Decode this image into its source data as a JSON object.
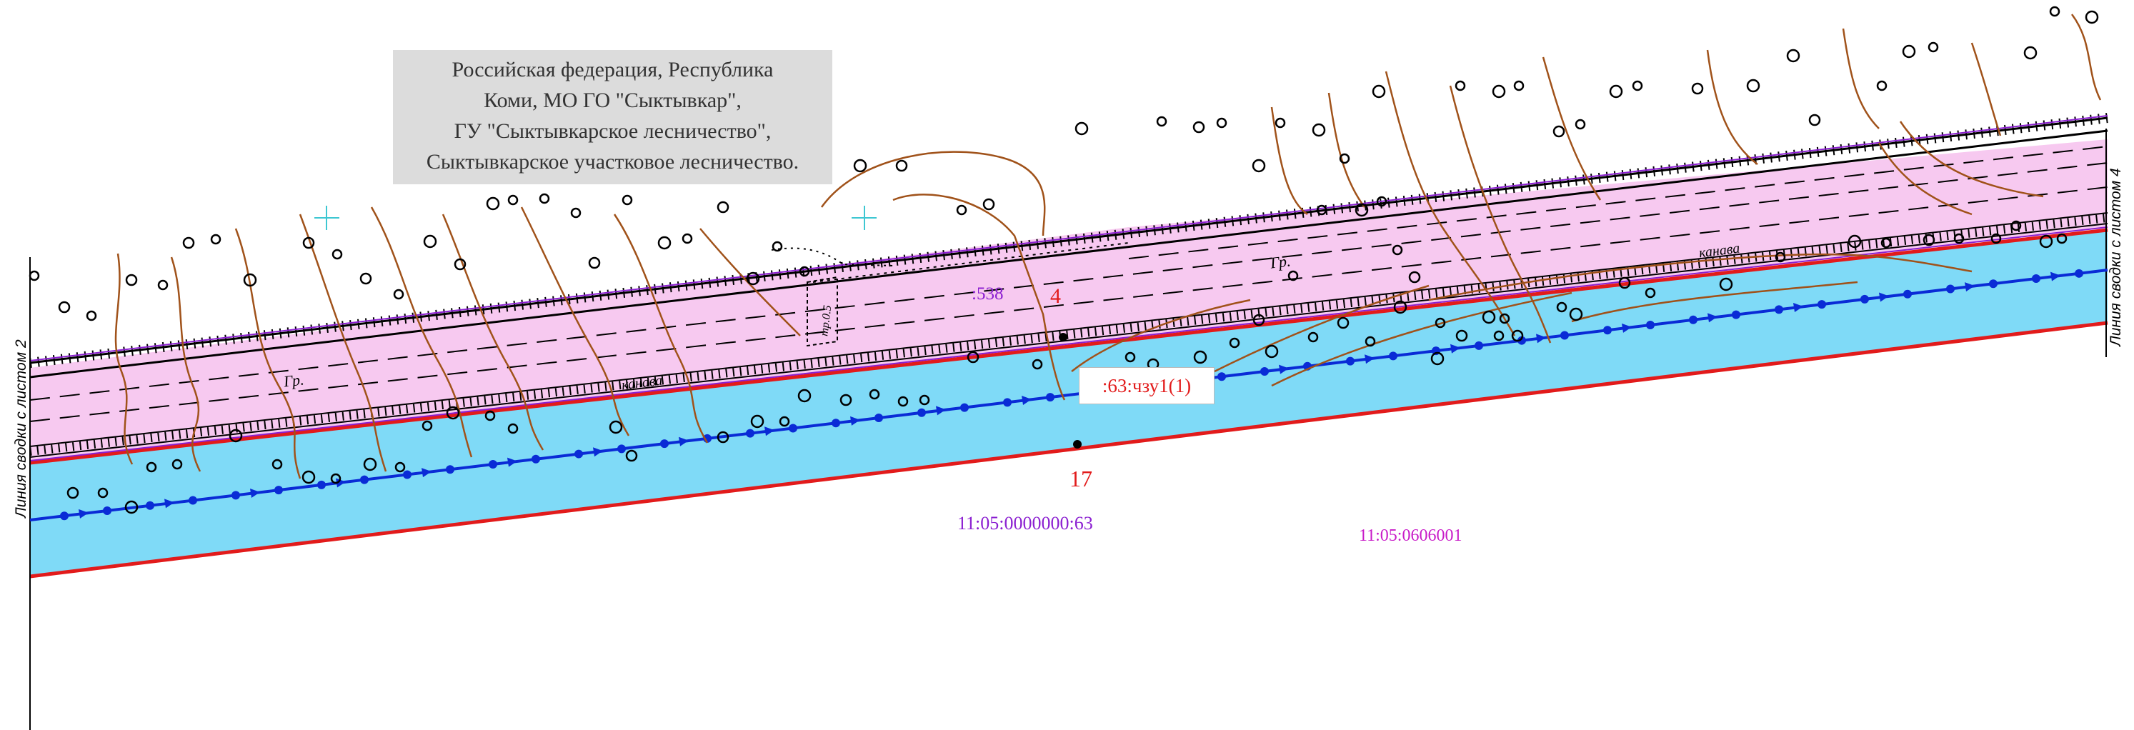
{
  "address": {
    "lines": [
      "Российская федерация, Республика",
      "Коми, МО ГО \"Сыктывкар\",",
      "ГУ \"Сыктывкарское лесничество\",",
      "Сыктывкарское участковое лесничество."
    ]
  },
  "zone_label": ":63:чзу1(1)",
  "parcel_labels": {
    "parcel_538": ":538",
    "cadastral_63": "11:05:0000000:63",
    "quarter": "11:05:0606001"
  },
  "point_numbers": {
    "p4": "4",
    "p17": "17"
  },
  "terrain_labels": {
    "gr_left": "Гр.",
    "gr_right": "Гр.",
    "kanava_left": "канава",
    "kanava_right": "канава",
    "truba": "тр.0.5"
  },
  "edge_labels": {
    "left": "Линия сводки с листом 2",
    "right": "Линия сводки с листом 4"
  },
  "colors": {
    "blue_zone": "#7fdaf7",
    "pink_strip": "#f7c9f0",
    "boundary_red": "#e21b1b",
    "utility_line": "#0a2bd6",
    "contours": "#a0521a",
    "cadastral_text": "#8b1fd1",
    "quarter_text": "#c81cc8",
    "point_text": "#e21b1b"
  }
}
